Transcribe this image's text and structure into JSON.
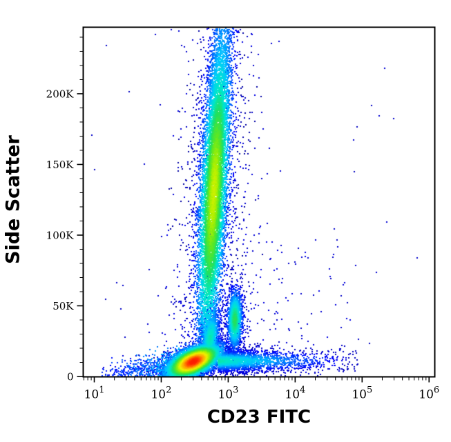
{
  "chart_data": {
    "type": "scatter",
    "subtype": "flow-cytometry-pseudocolor-density-plot",
    "title": "",
    "xlabel": "CD23 FITC",
    "ylabel": "Side Scatter",
    "x_scale": "log",
    "y_scale": "linear",
    "x_log_range": [
      0.84,
      6.08
    ],
    "y_range_k": [
      0,
      246.8
    ],
    "grid": false,
    "legend": "none",
    "x_ticks": [
      {
        "base": "10",
        "exponent": "1",
        "value": 10
      },
      {
        "base": "10",
        "exponent": "2",
        "value": 100
      },
      {
        "base": "10",
        "exponent": "3",
        "value": 1000
      },
      {
        "base": "10",
        "exponent": "4",
        "value": 10000
      },
      {
        "base": "10",
        "exponent": "5",
        "value": 100000
      },
      {
        "base": "10",
        "exponent": "6",
        "value": 1000000
      }
    ],
    "y_ticks": [
      {
        "value_k": 0,
        "label": "0"
      },
      {
        "value_k": 50,
        "label": "50K"
      },
      {
        "value_k": 100,
        "label": "100K"
      },
      {
        "value_k": 150,
        "label": "150K"
      },
      {
        "value_k": 200,
        "label": "200K"
      }
    ],
    "y_minor_step_k": 10,
    "axis_color": "#000000",
    "background_color": "#ffffff",
    "colormap_stops": [
      [
        0.0,
        "#00008c"
      ],
      [
        0.1,
        "#0000ff"
      ],
      [
        0.22,
        "#0060ff"
      ],
      [
        0.34,
        "#00c8ff"
      ],
      [
        0.44,
        "#00e8c8"
      ],
      [
        0.52,
        "#20e060"
      ],
      [
        0.6,
        "#60e820"
      ],
      [
        0.66,
        "#b0f000"
      ],
      [
        0.72,
        "#f0f000"
      ],
      [
        0.8,
        "#ffa000"
      ],
      [
        0.88,
        "#ff2000"
      ],
      [
        1.0,
        "#e00000"
      ]
    ],
    "seed": 42,
    "point_size": 2,
    "populations": [
      {
        "name": "granulocyte-plume",
        "kind": "plume",
        "n": 10500,
        "v_mean": 138,
        "v_sigma": 62,
        "v_clip": [
          18,
          246.5
        ],
        "u_base": 2.63,
        "u_slope": 0.00119,
        "u_sigma": 0.095,
        "halo_frac": 0.09,
        "halo_mult": 2.3,
        "t_base": 0.17,
        "t_amp": 0.5,
        "t_vc": 130,
        "t_vw": 92,
        "t_rdiv": 4.5
      },
      {
        "name": "lymphocytes-main",
        "kind": "gauss",
        "n": 6800,
        "cu": 2.48,
        "cv": 10.5,
        "su": 0.2,
        "sv": 6.0,
        "rho": 0.55,
        "t_peak": 0.88,
        "r_div": 4.2
      },
      {
        "name": "lymph-upper-arm",
        "kind": "gauss",
        "n": 1400,
        "cu": 2.73,
        "cv": 27,
        "su": 0.075,
        "sv": 11,
        "rho": 0.35,
        "t_peak": 0.45,
        "r_div": 3.5
      },
      {
        "name": "cd23-positive-blob",
        "kind": "gauss",
        "n": 1600,
        "cu": 3.1,
        "cv": 40,
        "su": 0.055,
        "sv": 10.5,
        "rho": 0.05,
        "t_peak": 0.52,
        "r_div": 3.8
      },
      {
        "name": "cd23-bright-streak",
        "kind": "streak",
        "n": 2300,
        "u_start": 2.85,
        "u_decay": 0.5,
        "u_max_delta": 2.1,
        "v_mean": 11,
        "v_sigma": 4.2,
        "v_clip": [
          0.5,
          30
        ],
        "t_peak": 0.45,
        "t_ufall": 0.2,
        "t_vw": 6
      },
      {
        "name": "debris-wedge",
        "kind": "debris",
        "n": 1050,
        "u_min": 1.05,
        "u_span": 1.45,
        "v_base": 1.5,
        "v_slope": 4.5,
        "v_sig_base": 3.2,
        "v_sig_slope": 2.0,
        "t_base": 0.1,
        "t_slope": 0.13
      },
      {
        "name": "upper-halo-scatter",
        "kind": "cloud",
        "n": 270,
        "u_base": 2.68,
        "u_slope": 0.0009,
        "u_sigma": 0.3,
        "v_range": [
          100,
          246.5
        ],
        "t": 0.05
      },
      {
        "name": "lower-fan-scatter",
        "kind": "fan",
        "n": 430,
        "v_base": 2,
        "v_span": 108,
        "v_pow": 1.6,
        "u_mean": 2.72,
        "u_sigma": 0.4,
        "t": 0.055
      },
      {
        "name": "right-spray-scatter",
        "kind": "spray",
        "n": 170,
        "u_base": 3.2,
        "u_span": 1.75,
        "u_pow": 1.8,
        "v_base": 3,
        "v_span": 95,
        "v_pow": 2.0,
        "t": 0.05
      },
      {
        "name": "rare-uniform-scatter",
        "kind": "uniform",
        "n": 55,
        "u_range": [
          0.95,
          6.03
        ],
        "v_range": [
          0,
          246
        ],
        "t": 0.045
      }
    ]
  }
}
